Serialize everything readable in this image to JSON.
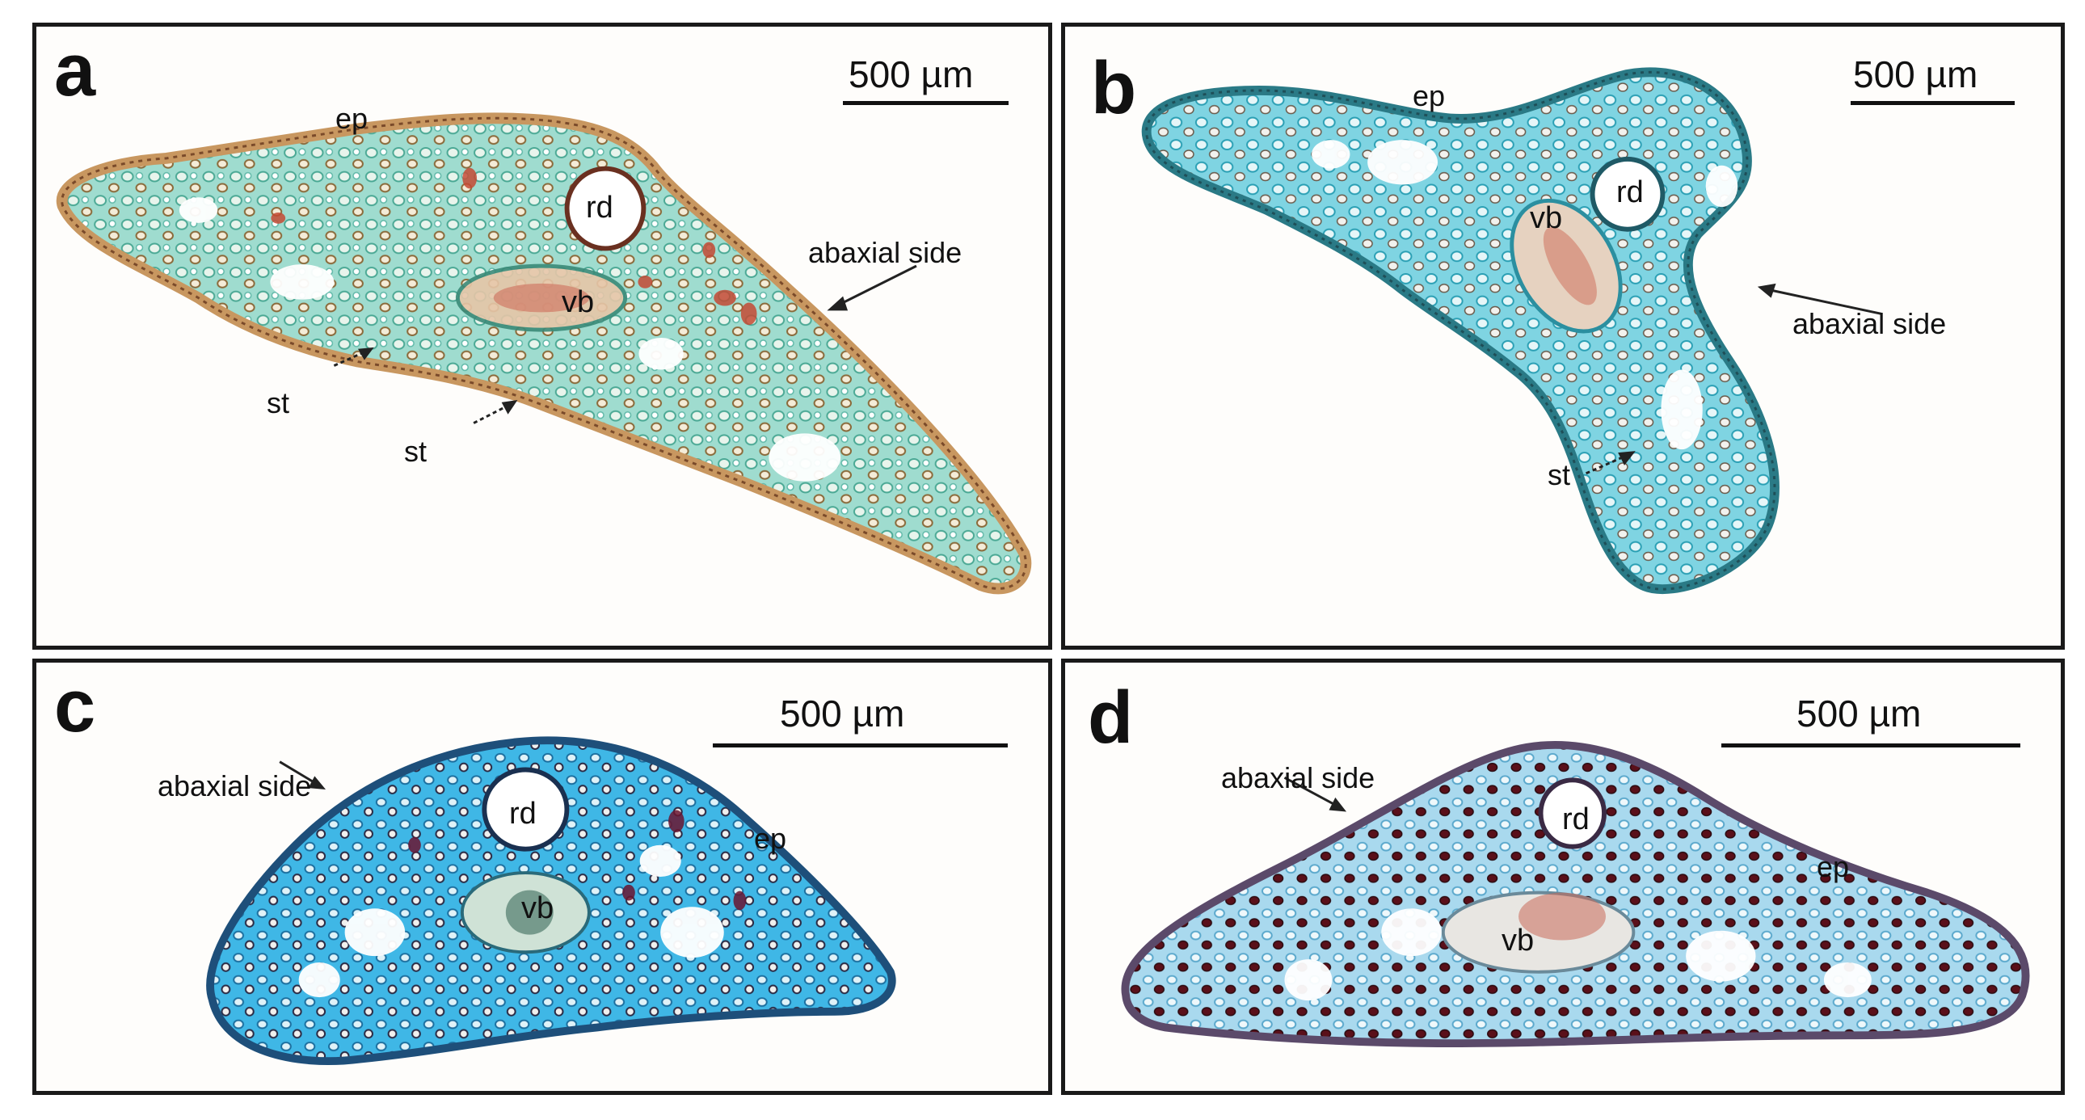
{
  "panels": [
    {
      "id": "a",
      "letter": "a",
      "scale_bar": "500 µm",
      "labels": {
        "ep": "ep",
        "rd": "rd",
        "vb": "vb",
        "abaxial": "abaxial side",
        "st1": "st",
        "st2": "st"
      },
      "colors": {
        "tissue": "#5ec7b8",
        "epidermis": "#d9a870",
        "accent": "#b5452e"
      }
    },
    {
      "id": "b",
      "letter": "b",
      "scale_bar": "500 µm",
      "labels": {
        "ep": "ep",
        "rd": "rd",
        "vb": "vb",
        "abaxial": "abaxial side",
        "st": "st"
      },
      "colors": {
        "tissue": "#3fc0d0",
        "epidermis": "#2b6f7a",
        "accent": "#b5452e"
      }
    },
    {
      "id": "c",
      "letter": "c",
      "scale_bar": "500 µm",
      "labels": {
        "abaxial": "abaxial side",
        "rd": "rd",
        "ep": "ep",
        "vb": "vb"
      },
      "colors": {
        "tissue": "#2aa8dc",
        "epidermis": "#1f4f7a",
        "accent": "#7a1530"
      }
    },
    {
      "id": "d",
      "letter": "d",
      "scale_bar": "500 µm",
      "labels": {
        "abaxial": "abaxial side",
        "rd": "rd",
        "ep": "ep",
        "vb": "vb"
      },
      "colors": {
        "tissue": "#7cc4e6",
        "epidermis": "#5b4a6a",
        "accent": "#5a0f1c"
      }
    }
  ]
}
